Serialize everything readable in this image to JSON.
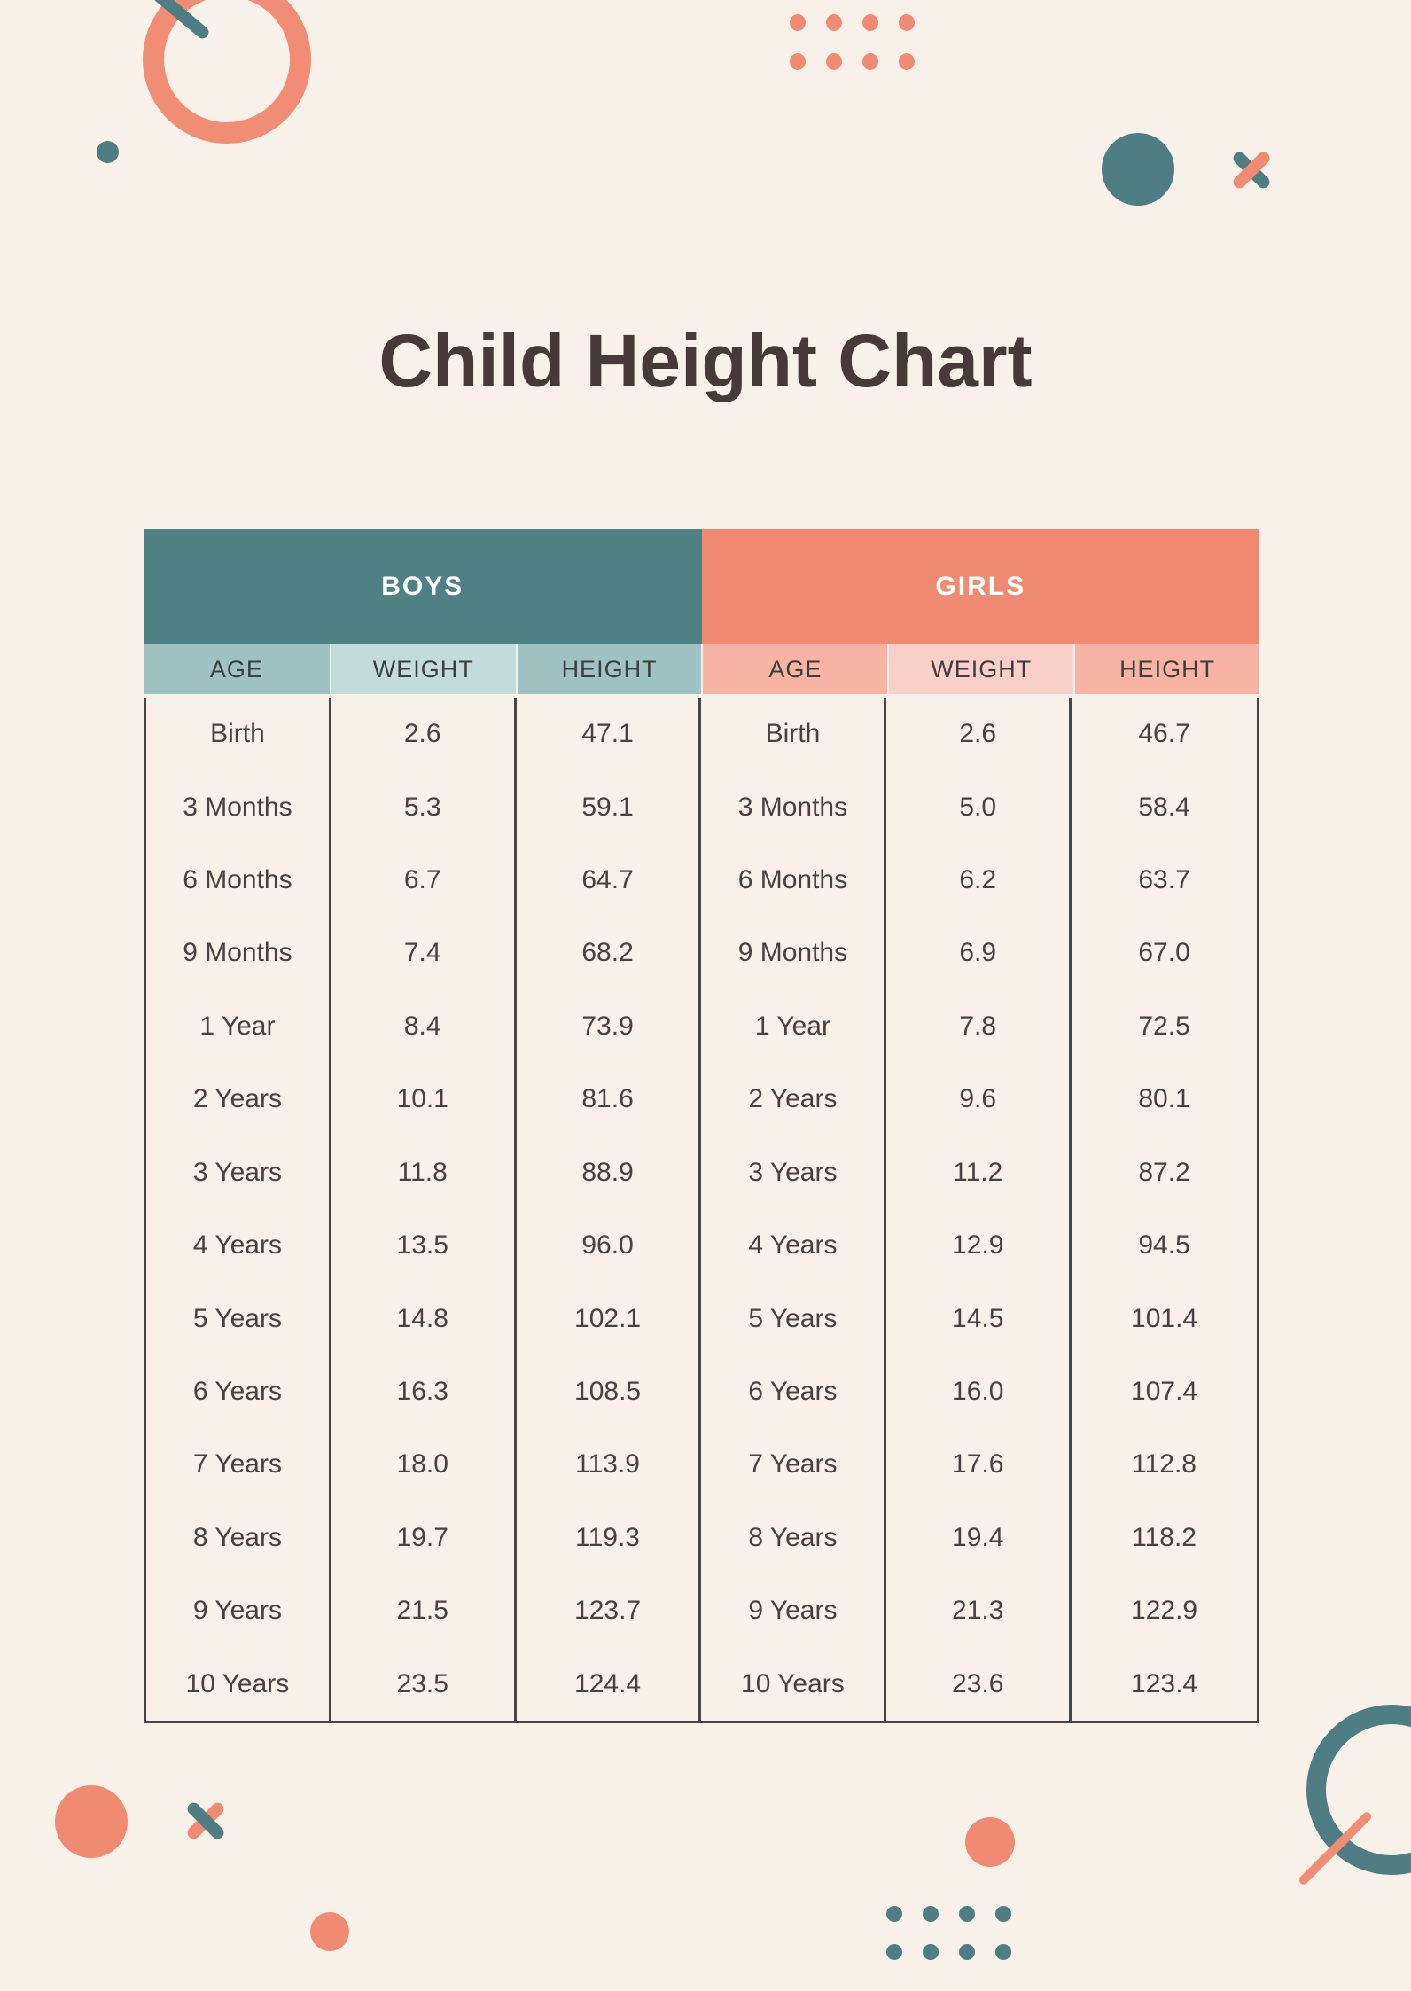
{
  "title": "Child Height Chart",
  "table": {
    "groups": [
      {
        "label": "BOYS",
        "columns": [
          "AGE",
          "WEIGHT",
          "HEIGHT"
        ]
      },
      {
        "label": "GIRLS",
        "columns": [
          "AGE",
          "WEIGHT",
          "HEIGHT"
        ]
      }
    ],
    "rows": [
      [
        "Birth",
        "2.6",
        "47.1",
        "Birth",
        "2.6",
        "46.7"
      ],
      [
        "3 Months",
        "5.3",
        "59.1",
        "3 Months",
        "5.0",
        "58.4"
      ],
      [
        "6 Months",
        "6.7",
        "64.7",
        "6 Months",
        "6.2",
        "63.7"
      ],
      [
        "9 Months",
        "7.4",
        "68.2",
        "9 Months",
        "6.9",
        "67.0"
      ],
      [
        "1 Year",
        "8.4",
        "73.9",
        "1 Year",
        "7.8",
        "72.5"
      ],
      [
        "2 Years",
        "10.1",
        "81.6",
        "2 Years",
        "9.6",
        "80.1"
      ],
      [
        "3 Years",
        "11.8",
        "88.9",
        "3 Years",
        "11.2",
        "87.2"
      ],
      [
        "4 Years",
        "13.5",
        "96.0",
        "4 Years",
        "12.9",
        "94.5"
      ],
      [
        "5 Years",
        "14.8",
        "102.1",
        "5 Years",
        "14.5",
        "101.4"
      ],
      [
        "6 Years",
        "16.3",
        "108.5",
        "6 Years",
        "16.0",
        "107.4"
      ],
      [
        "7 Years",
        "18.0",
        "113.9",
        "7 Years",
        "17.6",
        "112.8"
      ],
      [
        "8 Years",
        "19.7",
        "119.3",
        "8 Years",
        "19.4",
        "118.2"
      ],
      [
        "9 Years",
        "21.5",
        "123.7",
        "9 Years",
        "21.3",
        "122.9"
      ],
      [
        "10 Years",
        "23.5",
        "124.4",
        "10 Years",
        "23.6",
        "123.4"
      ]
    ]
  },
  "colors": {
    "background": "#f8f1ea",
    "teal": "#4f8084",
    "salmon": "#f08a72",
    "teal_subheader": "#9fc3c2",
    "teal_subheader_light": "#c2dcdb",
    "salmon_subheader": "#f7b3a3",
    "salmon_subheader_light": "#f9d0c8",
    "table_border": "#454545",
    "title_text": "#453a37",
    "cell_text": "#4a4040"
  }
}
